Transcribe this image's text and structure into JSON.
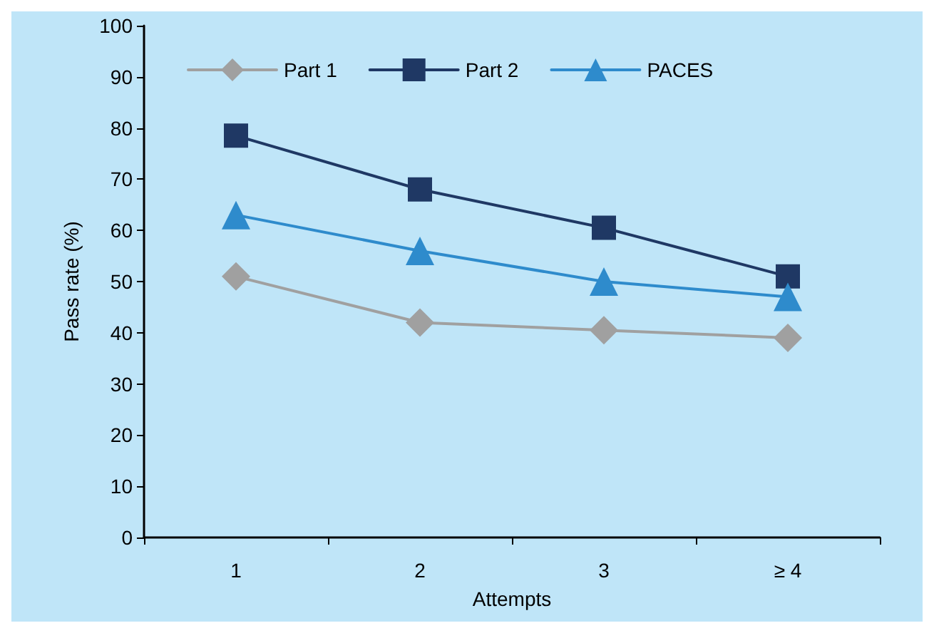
{
  "chart_data": {
    "type": "line",
    "xlabel": "Attempts",
    "ylabel": "Pass rate (%)",
    "categories": [
      "1",
      "2",
      "3",
      "≥ 4"
    ],
    "series": [
      {
        "name": "Part 1",
        "color": "#a0a0a0",
        "marker": "diamond",
        "values": [
          51,
          42,
          40.5,
          39
        ]
      },
      {
        "name": "Part 2",
        "color": "#1f3864",
        "marker": "square",
        "values": [
          78.5,
          68,
          60.5,
          51
        ]
      },
      {
        "name": "PACES",
        "color": "#2e8bcc",
        "marker": "triangle",
        "values": [
          63,
          56,
          50,
          47
        ]
      }
    ],
    "ylim": [
      0,
      100
    ],
    "yticks": [
      0,
      10,
      20,
      30,
      40,
      50,
      60,
      70,
      80,
      90,
      100
    ],
    "grid": false,
    "legend": "top left",
    "line_style": "solid"
  }
}
